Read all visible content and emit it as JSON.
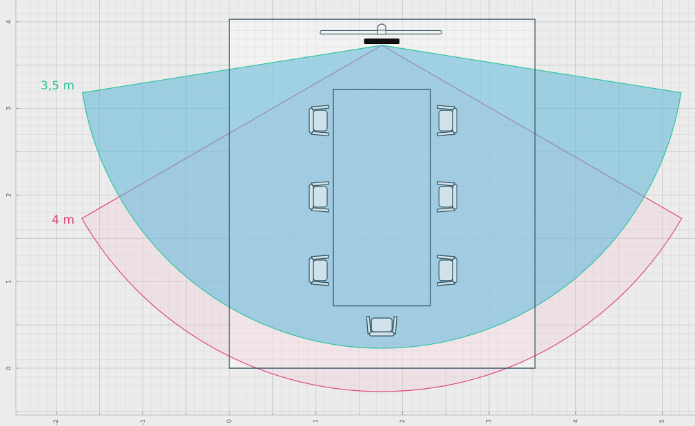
{
  "plan": {
    "x_range": [
      -2.4,
      5.4
    ],
    "y_range": [
      -0.5,
      4.1
    ],
    "x_ticks": [
      {
        "v": -2,
        "label": "-2"
      },
      {
        "v": -1,
        "label": "-1"
      },
      {
        "v": 0,
        "label": "0"
      },
      {
        "v": 1,
        "label": "1"
      },
      {
        "v": 2,
        "label": "2"
      },
      {
        "v": 3,
        "label": "3"
      },
      {
        "v": 4,
        "label": "4"
      },
      {
        "v": 5,
        "label": "5"
      }
    ],
    "y_ticks": [
      {
        "v": 0,
        "label": "0"
      },
      {
        "v": 1,
        "label": "1"
      },
      {
        "v": 2,
        "label": "2"
      },
      {
        "v": 3,
        "label": "3"
      },
      {
        "v": 4,
        "label": "4"
      }
    ],
    "colors": {
      "background": "#ececec",
      "grid_minor": "#d6d6d6",
      "grid_major": "#c4c4c4",
      "room_fill": "#f7f7f7",
      "room_stroke": "#2e4f5c",
      "teal": "#2ec4a0",
      "teal_fill": "#5fb8d9",
      "pink": "#e0457e",
      "pink_fill": "#f3c4d6",
      "furniture": "#2e4f5c"
    },
    "room": {
      "x0": 0,
      "y0": 0,
      "x1": 3.53,
      "y1": 4.03
    },
    "table": {
      "x0": 1.2,
      "y0": 0.72,
      "x1": 2.32,
      "y1": 3.22
    },
    "camera": {
      "x": 1.76,
      "y": 3.73
    },
    "display": {
      "x0": 1.05,
      "x1": 2.45,
      "y": 3.88
    },
    "camera_bar": {
      "x0": 1.56,
      "x1": 1.96,
      "y": 3.78
    },
    "ranges": [
      {
        "label": "4 m",
        "radius": 4.0,
        "half_angle_deg": 60,
        "color": "#e0457e",
        "fill": "#f3c4d6"
      },
      {
        "label": "3,5 m",
        "radius": 3.5,
        "half_angle_deg": 81,
        "color": "#2ec4a0",
        "fill": "#5fb8d9"
      }
    ],
    "chairs": [
      {
        "x": 1.05,
        "y": 2.86,
        "facing": "right"
      },
      {
        "x": 1.05,
        "y": 1.98,
        "facing": "right"
      },
      {
        "x": 1.05,
        "y": 1.13,
        "facing": "right"
      },
      {
        "x": 2.5,
        "y": 2.86,
        "facing": "left"
      },
      {
        "x": 2.5,
        "y": 1.98,
        "facing": "left"
      },
      {
        "x": 2.5,
        "y": 1.13,
        "facing": "left"
      },
      {
        "x": 1.76,
        "y": 0.5,
        "facing": "up"
      }
    ]
  }
}
